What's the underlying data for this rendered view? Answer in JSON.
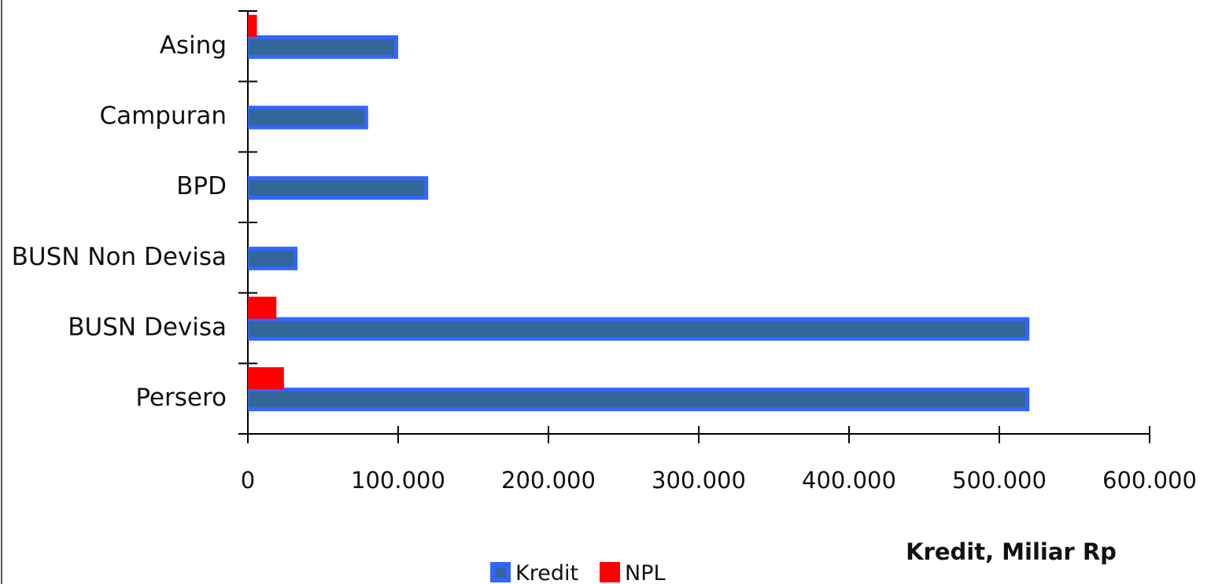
{
  "chart_data": {
    "type": "bar",
    "orientation": "horizontal",
    "categories": [
      "Asing",
      "Campuran",
      "BPD",
      "BUSN Non Devisa",
      "BUSN Devisa",
      "Persero"
    ],
    "series": [
      {
        "name": "Kredit",
        "values": [
          100000,
          80000,
          120000,
          33000,
          520000,
          520000
        ],
        "color": "#3366ff",
        "inner_color": "#336699"
      },
      {
        "name": "NPL",
        "values": [
          6000,
          0,
          0,
          0,
          19000,
          24000
        ],
        "color": "#ff0000"
      }
    ],
    "xlabel": "Kredit, Miliar Rp",
    "xlim": [
      0,
      600000
    ],
    "xticks": [
      0,
      100000,
      200000,
      300000,
      400000,
      500000,
      600000
    ],
    "xtick_labels": [
      "0",
      "100.000",
      "200.000",
      "300.000",
      "400.000",
      "500.000",
      "600.000"
    ],
    "grid": false,
    "legend_position": "bottom"
  }
}
